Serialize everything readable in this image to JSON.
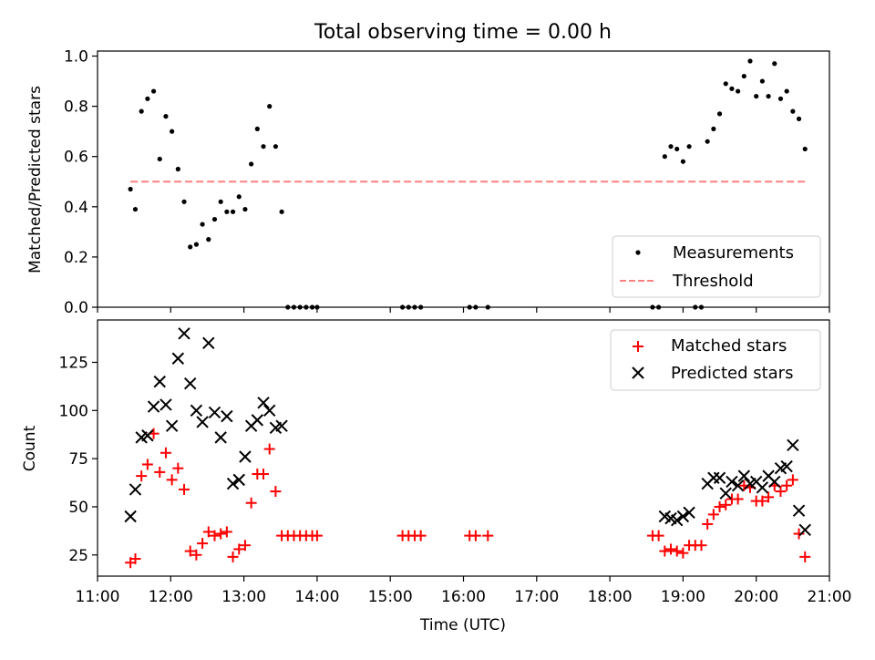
{
  "chart_data": [
    {
      "type": "scatter",
      "title": "Total observing time = 0.00 h",
      "ylabel": "Matched/Predicted stars",
      "xlabel": "",
      "xlim": [
        "11:00",
        "21:00"
      ],
      "ylim": [
        0.0,
        1.02
      ],
      "yticks": [
        0.0,
        0.2,
        0.4,
        0.6,
        0.8,
        1.0
      ],
      "ytick_labels": [
        "0.0",
        "0.2",
        "0.4",
        "0.6",
        "0.8",
        "1.0"
      ],
      "legend": {
        "placement": "lower-right",
        "entries": [
          "Measurements",
          "Threshold"
        ]
      },
      "series": [
        {
          "name": "Measurements",
          "kind": "points",
          "color": "#000000",
          "points": [
            [
              "11:27",
              0.47
            ],
            [
              "11:31",
              0.39
            ],
            [
              "11:36",
              0.78
            ],
            [
              "11:41",
              0.83
            ],
            [
              "11:46",
              0.86
            ],
            [
              "11:51",
              0.59
            ],
            [
              "11:56",
              0.76
            ],
            [
              "12:01",
              0.7
            ],
            [
              "12:06",
              0.55
            ],
            [
              "12:11",
              0.42
            ],
            [
              "12:16",
              0.24
            ],
            [
              "12:21",
              0.25
            ],
            [
              "12:26",
              0.33
            ],
            [
              "12:31",
              0.27
            ],
            [
              "12:36",
              0.35
            ],
            [
              "12:41",
              0.42
            ],
            [
              "12:46",
              0.38
            ],
            [
              "12:51",
              0.38
            ],
            [
              "12:56",
              0.44
            ],
            [
              "13:01",
              0.39
            ],
            [
              "13:06",
              0.57
            ],
            [
              "13:11",
              0.71
            ],
            [
              "13:16",
              0.64
            ],
            [
              "13:21",
              0.8
            ],
            [
              "13:26",
              0.64
            ],
            [
              "13:31",
              0.38
            ],
            [
              "13:36",
              0.0
            ],
            [
              "13:41",
              0.0
            ],
            [
              "13:46",
              0.0
            ],
            [
              "13:51",
              0.0
            ],
            [
              "13:56",
              0.0
            ],
            [
              "14:00",
              0.0
            ],
            [
              "15:10",
              0.0
            ],
            [
              "15:15",
              0.0
            ],
            [
              "15:20",
              0.0
            ],
            [
              "15:25",
              0.0
            ],
            [
              "16:05",
              0.0
            ],
            [
              "16:10",
              0.0
            ],
            [
              "16:20",
              0.0
            ],
            [
              "18:35",
              0.0
            ],
            [
              "18:40",
              0.0
            ],
            [
              "18:45",
              0.6
            ],
            [
              "18:50",
              0.64
            ],
            [
              "18:55",
              0.63
            ],
            [
              "19:00",
              0.58
            ],
            [
              "19:05",
              0.64
            ],
            [
              "19:10",
              0.0
            ],
            [
              "19:15",
              0.0
            ],
            [
              "19:20",
              0.66
            ],
            [
              "19:25",
              0.71
            ],
            [
              "19:30",
              0.77
            ],
            [
              "19:35",
              0.89
            ],
            [
              "19:40",
              0.87
            ],
            [
              "19:45",
              0.86
            ],
            [
              "19:50",
              0.92
            ],
            [
              "19:55",
              0.98
            ],
            [
              "20:00",
              0.84
            ],
            [
              "20:05",
              0.9
            ],
            [
              "20:10",
              0.84
            ],
            [
              "20:15",
              0.97
            ],
            [
              "20:20",
              0.83
            ],
            [
              "20:25",
              0.86
            ],
            [
              "20:30",
              0.78
            ],
            [
              "20:35",
              0.75
            ],
            [
              "20:40",
              0.63
            ]
          ]
        },
        {
          "name": "Threshold",
          "kind": "line",
          "style": "dashed",
          "color": "#ff8080",
          "points": [
            [
              "11:27",
              0.5
            ],
            [
              "20:40",
              0.5
            ]
          ]
        }
      ]
    },
    {
      "type": "scatter",
      "title": "",
      "ylabel": "Count",
      "xlabel": "Time (UTC)",
      "xlim": [
        "11:00",
        "21:00"
      ],
      "ylim": [
        14,
        147
      ],
      "yticks": [
        25,
        50,
        75,
        100,
        125
      ],
      "ytick_labels": [
        "25",
        "50",
        "75",
        "100",
        "125"
      ],
      "xticks": [
        "11:00",
        "12:00",
        "13:00",
        "14:00",
        "15:00",
        "16:00",
        "17:00",
        "18:00",
        "19:00",
        "20:00",
        "21:00"
      ],
      "legend": {
        "placement": "upper-right",
        "entries": [
          "Matched stars",
          "Predicted stars"
        ]
      },
      "series": [
        {
          "name": "Matched stars",
          "marker": "plus",
          "color": "#ff0000",
          "points": [
            [
              "11:27",
              21
            ],
            [
              "11:31",
              23
            ],
            [
              "11:36",
              66
            ],
            [
              "11:41",
              72
            ],
            [
              "11:46",
              88
            ],
            [
              "11:51",
              68
            ],
            [
              "11:56",
              78
            ],
            [
              "12:01",
              64
            ],
            [
              "12:06",
              70
            ],
            [
              "12:11",
              59
            ],
            [
              "12:16",
              27
            ],
            [
              "12:21",
              25
            ],
            [
              "12:26",
              31
            ],
            [
              "12:31",
              37
            ],
            [
              "12:36",
              35
            ],
            [
              "12:41",
              36
            ],
            [
              "12:46",
              37
            ],
            [
              "12:51",
              24
            ],
            [
              "12:56",
              28
            ],
            [
              "13:01",
              30
            ],
            [
              "13:06",
              52
            ],
            [
              "13:11",
              67
            ],
            [
              "13:16",
              67
            ],
            [
              "13:21",
              80
            ],
            [
              "13:26",
              58
            ],
            [
              "13:31",
              35
            ],
            [
              "13:36",
              35
            ],
            [
              "13:41",
              35
            ],
            [
              "13:46",
              35
            ],
            [
              "13:51",
              35
            ],
            [
              "13:56",
              35
            ],
            [
              "14:00",
              35
            ],
            [
              "15:10",
              35
            ],
            [
              "15:15",
              35
            ],
            [
              "15:20",
              35
            ],
            [
              "15:25",
              35
            ],
            [
              "16:05",
              35
            ],
            [
              "16:10",
              35
            ],
            [
              "16:20",
              35
            ],
            [
              "18:35",
              35
            ],
            [
              "18:40",
              35
            ],
            [
              "18:45",
              27
            ],
            [
              "18:50",
              28
            ],
            [
              "18:55",
              27
            ],
            [
              "19:00",
              26
            ],
            [
              "19:05",
              30
            ],
            [
              "19:10",
              30
            ],
            [
              "19:15",
              30
            ],
            [
              "19:20",
              41
            ],
            [
              "19:25",
              46
            ],
            [
              "19:30",
              50
            ],
            [
              "19:35",
              51
            ],
            [
              "19:40",
              54
            ],
            [
              "19:45",
              54
            ],
            [
              "19:50",
              61
            ],
            [
              "19:55",
              60
            ],
            [
              "20:00",
              53
            ],
            [
              "20:05",
              53
            ],
            [
              "20:10",
              55
            ],
            [
              "20:15",
              61
            ],
            [
              "20:20",
              58
            ],
            [
              "20:25",
              61
            ],
            [
              "20:30",
              64
            ],
            [
              "20:35",
              36
            ],
            [
              "20:40",
              24
            ]
          ]
        },
        {
          "name": "Predicted stars",
          "marker": "x",
          "color": "#000000",
          "points": [
            [
              "11:27",
              45
            ],
            [
              "11:31",
              59
            ],
            [
              "11:36",
              86
            ],
            [
              "11:41",
              87
            ],
            [
              "11:46",
              102
            ],
            [
              "11:51",
              115
            ],
            [
              "11:56",
              103
            ],
            [
              "12:01",
              92
            ],
            [
              "12:06",
              127
            ],
            [
              "12:11",
              140
            ],
            [
              "12:16",
              114
            ],
            [
              "12:21",
              100
            ],
            [
              "12:26",
              94
            ],
            [
              "12:31",
              135
            ],
            [
              "12:36",
              99
            ],
            [
              "12:41",
              86
            ],
            [
              "12:46",
              97
            ],
            [
              "12:51",
              62
            ],
            [
              "12:56",
              64
            ],
            [
              "13:01",
              76
            ],
            [
              "13:06",
              92
            ],
            [
              "13:11",
              95
            ],
            [
              "13:16",
              104
            ],
            [
              "13:21",
              100
            ],
            [
              "13:26",
              91
            ],
            [
              "13:31",
              92
            ],
            [
              "18:45",
              45
            ],
            [
              "18:50",
              44
            ],
            [
              "18:55",
              43
            ],
            [
              "19:00",
              45
            ],
            [
              "19:05",
              47
            ],
            [
              "19:20",
              62
            ],
            [
              "19:25",
              65
            ],
            [
              "19:30",
              65
            ],
            [
              "19:35",
              57
            ],
            [
              "19:40",
              63
            ],
            [
              "19:45",
              61
            ],
            [
              "19:50",
              66
            ],
            [
              "19:55",
              62
            ],
            [
              "20:00",
              63
            ],
            [
              "20:05",
              60
            ],
            [
              "20:10",
              66
            ],
            [
              "20:15",
              63
            ],
            [
              "20:20",
              70
            ],
            [
              "20:25",
              71
            ],
            [
              "20:30",
              82
            ],
            [
              "20:35",
              48
            ],
            [
              "20:40",
              38
            ]
          ]
        }
      ]
    }
  ]
}
